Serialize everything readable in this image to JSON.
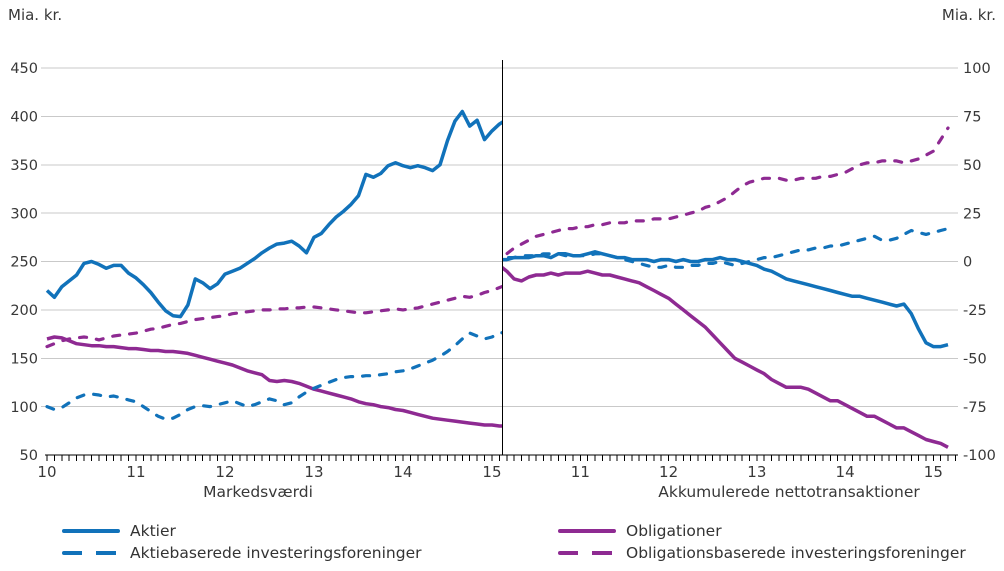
{
  "units": {
    "left": "Mia. kr.",
    "right": "Mia. kr."
  },
  "panels": {
    "left_caption": "Markedsværdi",
    "right_caption": "Akkumulerede nettotransaktioner"
  },
  "legend": {
    "items": [
      {
        "label": "Aktier",
        "color": "#1172ba",
        "style": "solid"
      },
      {
        "label": "Aktiebaserede investeringsforeninger",
        "color": "#1172ba",
        "style": "dashed"
      },
      {
        "label": "Obligationer",
        "color": "#8e2a92",
        "style": "solid"
      },
      {
        "label": "Obligationsbaserede investeringsforeninger",
        "color": "#8e2a92",
        "style": "dashed"
      }
    ]
  },
  "colors": {
    "blue": "#1172ba",
    "purple": "#8e2a92",
    "grid": "#c9c9c9",
    "axis": "#000000",
    "text": "#383838"
  },
  "chart_data": [
    {
      "type": "line",
      "title": "Markedsværdi",
      "ylabel": "Mia. kr.",
      "ylim": [
        50,
        450
      ],
      "y_ticks": [
        450,
        400,
        350,
        300,
        250,
        200,
        150,
        100,
        50
      ],
      "x": {
        "start": "2010-01",
        "step_months": 1,
        "ticks": [
          "10",
          "11",
          "12",
          "13",
          "14",
          "15"
        ]
      },
      "grid": true,
      "series": [
        {
          "name": "Aktier",
          "color": "#1172ba",
          "dash": "solid",
          "values": [
            220,
            213,
            224,
            230,
            236,
            248,
            250,
            247,
            243,
            246,
            246,
            238,
            233,
            226,
            218,
            208,
            199,
            194,
            193,
            205,
            232,
            228,
            222,
            227,
            237,
            240,
            243,
            248,
            253,
            259,
            264,
            268,
            269,
            271,
            266,
            259,
            275,
            279,
            288,
            296,
            302,
            309,
            318,
            340,
            337,
            341,
            349,
            352,
            349,
            347,
            349,
            347,
            344,
            350,
            375,
            395,
            405,
            390,
            396,
            376,
            385,
            392,
            397
          ]
        },
        {
          "name": "Aktiebaserede investeringsforeninger",
          "color": "#1172ba",
          "dash": "dashed",
          "values": [
            100,
            97,
            99,
            104,
            109,
            112,
            113,
            112,
            110,
            111,
            109,
            107,
            105,
            100,
            95,
            90,
            87,
            88,
            92,
            97,
            100,
            101,
            100,
            102,
            104,
            106,
            103,
            100,
            102,
            105,
            108,
            106,
            102,
            104,
            110,
            115,
            119,
            122,
            125,
            128,
            130,
            131,
            131,
            132,
            132,
            133,
            134,
            136,
            137,
            139,
            142,
            145,
            148,
            152,
            157,
            163,
            170,
            176,
            173,
            170,
            172,
            176,
            177
          ]
        },
        {
          "name": "Obligationer",
          "color": "#8e2a92",
          "dash": "solid",
          "values": [
            170,
            172,
            171,
            168,
            165,
            164,
            163,
            163,
            162,
            162,
            161,
            160,
            160,
            159,
            158,
            158,
            157,
            157,
            156,
            155,
            153,
            151,
            149,
            147,
            145,
            143,
            140,
            137,
            135,
            133,
            127,
            126,
            127,
            126,
            124,
            121,
            118,
            116,
            114,
            112,
            110,
            108,
            105,
            103,
            102,
            100,
            99,
            97,
            96,
            94,
            92,
            90,
            88,
            87,
            86,
            85,
            84,
            83,
            82,
            81,
            81,
            80,
            80
          ]
        },
        {
          "name": "Obligationsbaserede investeringsforeninger",
          "color": "#8e2a92",
          "dash": "dashed",
          "values": [
            162,
            165,
            168,
            170,
            171,
            172,
            171,
            169,
            171,
            173,
            174,
            175,
            176,
            178,
            180,
            181,
            183,
            185,
            186,
            188,
            190,
            191,
            192,
            193,
            194,
            196,
            197,
            198,
            199,
            200,
            200,
            201,
            201,
            202,
            202,
            203,
            203,
            202,
            201,
            200,
            199,
            198,
            197,
            197,
            198,
            199,
            200,
            201,
            200,
            201,
            202,
            204,
            206,
            208,
            210,
            212,
            214,
            213,
            215,
            218,
            220,
            223,
            226
          ]
        }
      ]
    },
    {
      "type": "line",
      "title": "Akkumulerede nettotransaktioner",
      "ylabel": "Mia. kr.",
      "ylim": [
        -100,
        100
      ],
      "y_ticks": [
        100,
        75,
        50,
        25,
        0,
        -25,
        -50,
        -75,
        -100
      ],
      "x": {
        "start": "2010-01",
        "step_months": 1,
        "ticks": [
          "11",
          "12",
          "13",
          "14",
          "15"
        ]
      },
      "grid": true,
      "series": [
        {
          "name": "Aktier",
          "color": "#1172ba",
          "dash": "solid",
          "values": [
            0,
            1,
            1,
            2,
            2,
            2,
            3,
            3,
            2,
            4,
            4,
            3,
            3,
            4,
            5,
            4,
            3,
            2,
            2,
            1,
            1,
            1,
            0,
            1,
            1,
            0,
            1,
            0,
            0,
            1,
            1,
            2,
            1,
            1,
            0,
            -1,
            -2,
            -4,
            -5,
            -7,
            -9,
            -10,
            -11,
            -12,
            -13,
            -14,
            -15,
            -16,
            -17,
            -18,
            -18,
            -19,
            -20,
            -21,
            -22,
            -23,
            -22,
            -27,
            -35,
            -42,
            -44,
            -44,
            -43
          ]
        },
        {
          "name": "Aktiebaserede investeringsforeninger",
          "color": "#1172ba",
          "dash": "dashed",
          "values": [
            0,
            1,
            2,
            2,
            3,
            3,
            3,
            4,
            4,
            4,
            3,
            3,
            3,
            3,
            4,
            4,
            3,
            2,
            1,
            0,
            -1,
            -2,
            -3,
            -3,
            -2,
            -3,
            -3,
            -2,
            -2,
            -1,
            -1,
            0,
            -1,
            -2,
            -1,
            0,
            1,
            2,
            2,
            3,
            4,
            5,
            6,
            6,
            7,
            7,
            8,
            8,
            9,
            10,
            11,
            12,
            13,
            11,
            11,
            12,
            14,
            16,
            15,
            14,
            15,
            16,
            17
          ]
        },
        {
          "name": "Obligationer",
          "color": "#8e2a92",
          "dash": "solid",
          "values": [
            0,
            -2,
            -5,
            -9,
            -10,
            -8,
            -7,
            -7,
            -6,
            -7,
            -6,
            -6,
            -6,
            -5,
            -6,
            -7,
            -7,
            -8,
            -9,
            -10,
            -11,
            -13,
            -15,
            -17,
            -19,
            -22,
            -25,
            -28,
            -31,
            -34,
            -38,
            -42,
            -46,
            -50,
            -52,
            -54,
            -56,
            -58,
            -61,
            -63,
            -65,
            -65,
            -65,
            -66,
            -68,
            -70,
            -72,
            -72,
            -74,
            -76,
            -78,
            -80,
            -80,
            -82,
            -84,
            -86,
            -86,
            -88,
            -90,
            -92,
            -93,
            -94,
            -96
          ]
        },
        {
          "name": "Obligationsbaserede investeringsforeninger",
          "color": "#8e2a92",
          "dash": "dashed",
          "values": [
            0,
            2,
            4,
            7,
            9,
            11,
            13,
            14,
            15,
            16,
            17,
            17,
            18,
            18,
            19,
            19,
            20,
            20,
            20,
            21,
            21,
            21,
            22,
            22,
            22,
            23,
            24,
            25,
            26,
            28,
            29,
            31,
            33,
            36,
            39,
            41,
            42,
            43,
            43,
            43,
            42,
            42,
            43,
            43,
            43,
            44,
            44,
            45,
            46,
            48,
            50,
            51,
            51,
            52,
            52,
            52,
            51,
            52,
            53,
            55,
            57,
            63,
            69
          ]
        }
      ]
    }
  ]
}
